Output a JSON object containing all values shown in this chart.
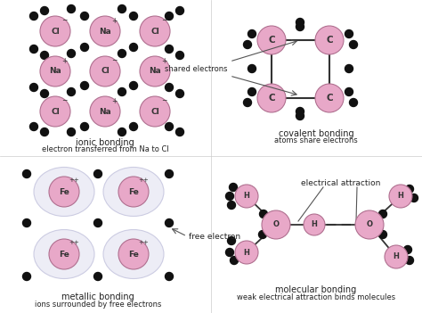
{
  "background_color": "#ffffff",
  "ion_color": "#e8a8c8",
  "ion_edge_color": "#b07090",
  "electron_color": "#111111",
  "fe_cloud_color": "#ebebf5",
  "fe_cloud_edge": "#c8c8e0",
  "text_color": "#222222",
  "arrow_color": "#555555",
  "dashed_color": "#333333",
  "label_ionic_1": "ionic bonding",
  "label_ionic_2": "electron transferred from Na to Cl",
  "label_covalent_1": "covalent bonding",
  "label_covalent_2": "atoms share electrons",
  "label_metallic_1": "metallic bonding",
  "label_metallic_2": "ions surrounded by free electrons",
  "label_molecular_1": "molecular bonding",
  "label_molecular_2": "weak electrical attraction binds molecules",
  "label_shared": "shared electrons",
  "label_free": "free electron",
  "label_electrical": "electrical attraction"
}
